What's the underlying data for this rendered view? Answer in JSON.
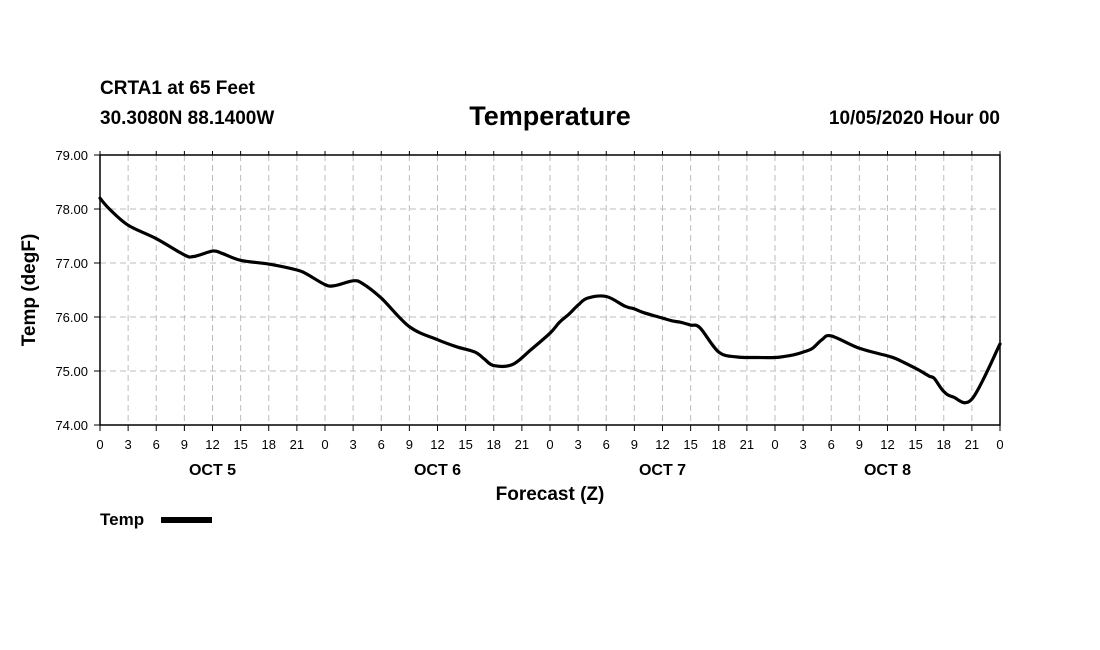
{
  "header": {
    "station": "CRTA1 at 65 Feet",
    "location": "30.3080N 88.1400W",
    "title": "Temperature",
    "run": "10/05/2020 Hour 00"
  },
  "legend": {
    "label": "Temp"
  },
  "chart_data": {
    "type": "line",
    "title": "Temperature",
    "xlabel": "Forecast (Z)",
    "ylabel": "Temp (degF)",
    "ylim": [
      74.0,
      79.0
    ],
    "xlim": [
      0,
      96
    ],
    "yticks": [
      "74.00",
      "75.00",
      "76.00",
      "77.00",
      "78.00",
      "79.00"
    ],
    "xticks": [
      "0",
      "3",
      "6",
      "9",
      "12",
      "15",
      "18",
      "21",
      "0",
      "3",
      "6",
      "9",
      "12",
      "15",
      "18",
      "21",
      "0",
      "3",
      "6",
      "9",
      "12",
      "15",
      "18",
      "21",
      "0",
      "3",
      "6",
      "9",
      "12",
      "15",
      "18",
      "21",
      "0"
    ],
    "day_labels": [
      {
        "label": "OCT 5",
        "at_hour": 12
      },
      {
        "label": "OCT 6",
        "at_hour": 36
      },
      {
        "label": "OCT 7",
        "at_hour": 60
      },
      {
        "label": "OCT 8",
        "at_hour": 84
      }
    ],
    "grid": true,
    "series": [
      {
        "name": "Temp",
        "x": [
          0,
          1,
          3,
          6,
          9,
          10,
          12,
          13,
          15,
          18,
          21,
          22,
          24,
          25,
          27,
          28,
          30,
          33,
          36,
          38,
          40,
          41,
          42,
          44,
          46,
          48,
          49,
          50,
          51,
          52,
          54,
          56,
          57,
          58,
          60,
          61,
          62,
          63,
          64,
          66,
          68,
          70,
          72,
          73,
          74,
          75,
          76,
          77,
          78,
          81,
          84,
          85,
          87,
          88,
          88.5,
          89,
          90,
          91,
          93,
          96
        ],
        "values": [
          78.2,
          78.0,
          77.7,
          77.45,
          77.15,
          77.12,
          77.22,
          77.18,
          77.05,
          76.98,
          76.87,
          76.8,
          76.6,
          76.58,
          76.67,
          76.62,
          76.35,
          75.82,
          75.58,
          75.45,
          75.35,
          75.22,
          75.1,
          75.12,
          75.4,
          75.7,
          75.9,
          76.05,
          76.22,
          76.35,
          76.38,
          76.2,
          76.15,
          76.08,
          75.98,
          75.93,
          75.9,
          75.85,
          75.8,
          75.35,
          75.26,
          75.25,
          75.25,
          75.27,
          75.3,
          75.35,
          75.42,
          75.58,
          75.65,
          75.42,
          75.28,
          75.22,
          75.05,
          74.95,
          74.9,
          74.86,
          74.62,
          74.52,
          74.48,
          75.5
        ]
      }
    ]
  }
}
